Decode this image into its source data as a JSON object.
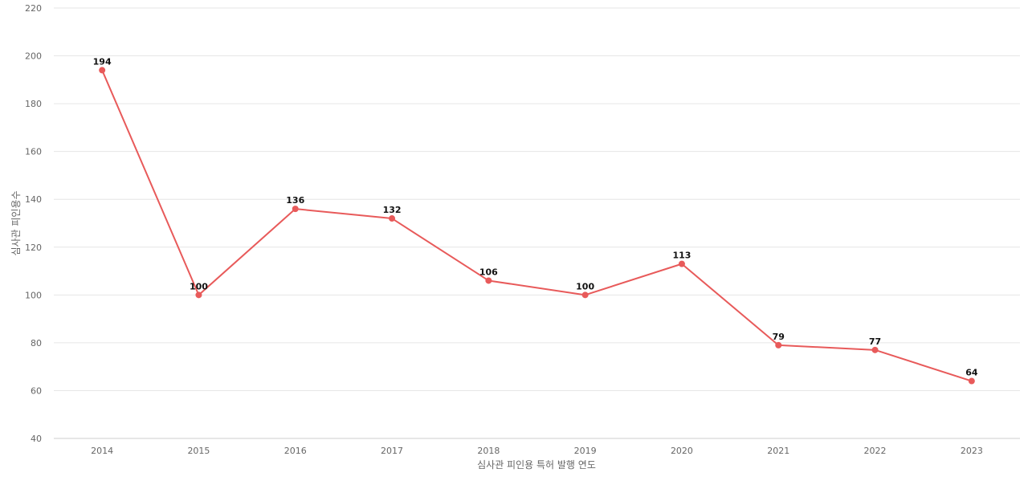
{
  "chart_data": {
    "type": "line",
    "title": "",
    "xlabel": "심사관 피인용 특허 발행 연도",
    "ylabel": "심사관 피인용수",
    "categories": [
      "2014",
      "2015",
      "2016",
      "2017",
      "2018",
      "2019",
      "2020",
      "2021",
      "2022",
      "2023"
    ],
    "series": [
      {
        "values": [
          194,
          100,
          136,
          132,
          106,
          100,
          113,
          79,
          77,
          64
        ],
        "color": "#e85a5a"
      }
    ],
    "ylim": [
      40,
      220
    ],
    "yticks": [
      40,
      60,
      80,
      100,
      120,
      140,
      160,
      180,
      200,
      220
    ],
    "grid": true,
    "data_labels": true
  }
}
